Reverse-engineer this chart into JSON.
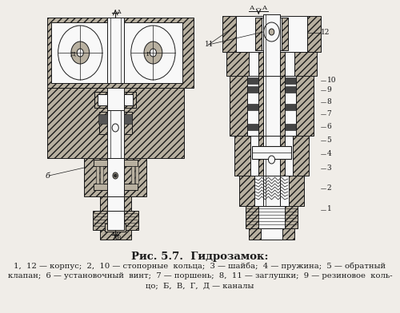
{
  "title": "Рис. 5.7.  Гидрозамок:",
  "caption_line1": "1,  12 — корпус;  2,  10 — стопорные  кольца;  3 — шайба;  4 — пружина;  5 — обратный",
  "caption_line2": "клапан;  6 — установочный  винт;  7 — поршень;  8,  11 — заглушки;  9 — резиновое  коль-",
  "caption_line3": "цо;  Б,  В,  Г,  Д — каналы",
  "bg_color": "#f0ede8",
  "fig_width": 5.0,
  "fig_height": 3.92,
  "dpi": 100,
  "title_fontsize": 9.5,
  "caption_fontsize": 7.2,
  "line_color": "#1a1a1a",
  "hatch_fc": "#b8b0a0",
  "white_color": "#f8f8f8",
  "mid_gray": "#888880"
}
